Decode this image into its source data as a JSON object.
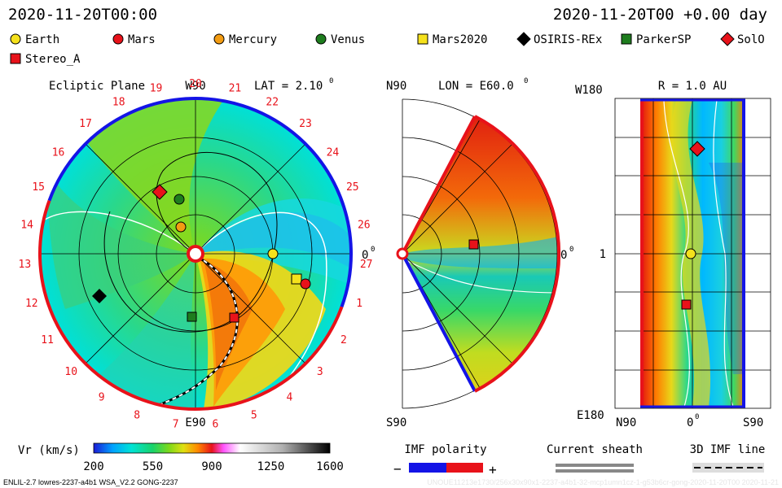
{
  "header": {
    "date_left": "2020-11-20T00:00",
    "date_right": "2020-11-20T00 +0.00 day"
  },
  "legend": [
    {
      "name": "Earth",
      "shape": "circle",
      "color": "#f5e11c"
    },
    {
      "name": "Mars",
      "shape": "circle",
      "color": "#e8121a"
    },
    {
      "name": "Mercury",
      "shape": "circle",
      "color": "#f39c12"
    },
    {
      "name": "Venus",
      "shape": "circle",
      "color": "#1e7d1e"
    },
    {
      "name": "Mars2020",
      "shape": "square",
      "color": "#f5e11c"
    },
    {
      "name": "OSIRIS-REx",
      "shape": "diamond",
      "color": "#000000"
    },
    {
      "name": "ParkerSP",
      "shape": "square",
      "color": "#1e7d1e"
    },
    {
      "name": "SolO",
      "shape": "diamond",
      "color": "#e8121a"
    },
    {
      "name": "Stereo_A",
      "shape": "square",
      "color": "#e8121a"
    }
  ],
  "panels": {
    "ecliptic": {
      "title": "Ecliptic Plane",
      "top_label": "W90",
      "lat_label": "LAT = 2.10",
      "right_label": "0",
      "bottom_label": "E90",
      "date_ticks": [
        "20",
        "21",
        "22",
        "23",
        "24",
        "25",
        "26",
        "27",
        "1",
        "2",
        "3",
        "4",
        "5",
        "6",
        "7",
        "8",
        "9",
        "10",
        "11",
        "12",
        "13",
        "14",
        "15",
        "16",
        "17",
        "18",
        "19"
      ]
    },
    "meridional": {
      "top_label": "N90",
      "lon_label": "LON = E60.0",
      "right_label": "0",
      "bottom_label": "S90"
    },
    "synoptic": {
      "title": "R = 1.0 AU",
      "top_left": "W180",
      "mid_left": "1",
      "bottom_left": "E180",
      "x_labels": [
        "N90",
        "0",
        "S90"
      ]
    }
  },
  "colorbar": {
    "label": "Vr (km/s)",
    "ticks": [
      "200",
      "550",
      "900",
      "1250",
      "1600"
    ],
    "stops": [
      "#1b1bd6",
      "#00a2ff",
      "#00e3d5",
      "#19d36a",
      "#7fd91a",
      "#e0e012",
      "#ff8a00",
      "#e8121a",
      "#ff55ff",
      "#ffffff",
      "#b0b0b0",
      "#000000"
    ]
  },
  "imf_legend": {
    "title": "IMF polarity",
    "minus": "−",
    "plus": "+",
    "neg_color": "#1414e6",
    "pos_color": "#e8121a"
  },
  "sheath_legend": {
    "title": "Current sheath"
  },
  "imf_line_legend": {
    "title": "3D IMF line"
  },
  "footer": {
    "left": "ENLIL-2.7 lowres-2237-a4b1 WSA_V2.2 GONG-2237",
    "right": "UNOUE11213e1730/256x30x90x1-2237-a4b1-32-mcp1umn1cz-1-g53b6cr-gong-2020-11-20T00   2020-11-21"
  },
  "chart_data": {
    "type": "heatmap",
    "quantity": "Vr (km/s)",
    "color_range": [
      200,
      1600
    ],
    "datetime": "2020-11-20T00:00",
    "ecliptic_latitude_deg": 2.1,
    "meridional_longitude": "E60.0",
    "synoptic_radius_au": 1.0,
    "objects": [
      "Earth",
      "Mars",
      "Mercury",
      "Venus",
      "Mars2020",
      "OSIRIS-REx",
      "ParkerSP",
      "SolO",
      "Stereo_A"
    ]
  }
}
